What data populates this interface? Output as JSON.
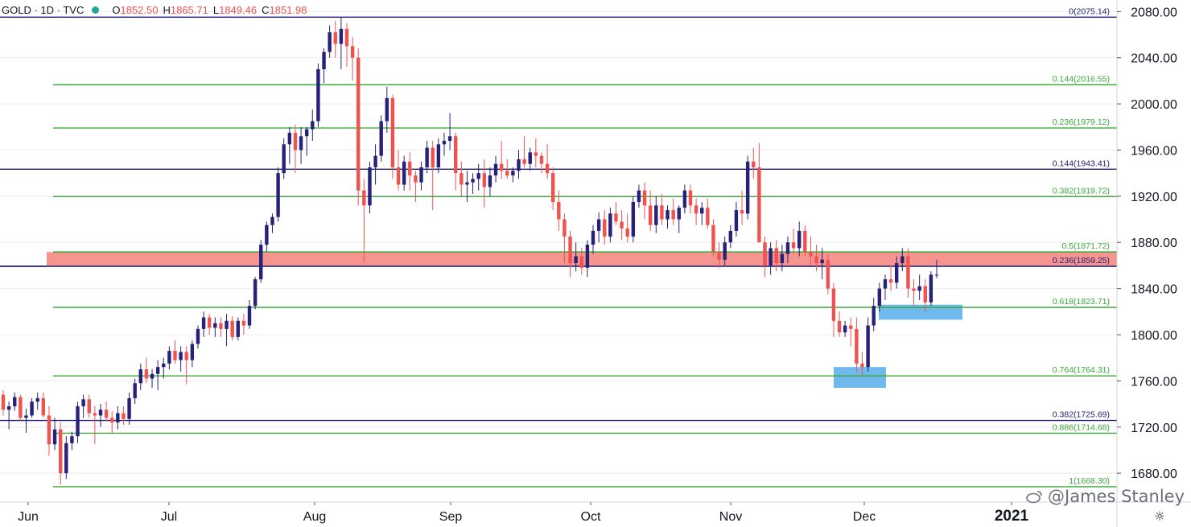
{
  "header": {
    "symbol": "GOLD · 1D · TVC",
    "open_label": "O",
    "open": "1852.50",
    "high_label": "H",
    "high": "1865.71",
    "low_label": "L",
    "low": "1849.46",
    "close_label": "C",
    "close": "1851.98"
  },
  "watermark": {
    "text": "@James Stanley",
    "icon": "weibo-logo-icon"
  },
  "settings": {
    "icon": "gear-icon"
  },
  "colors": {
    "up": "#26227a",
    "down": "#ef5350",
    "fib_green": "#3aa83a",
    "fib_navy": "#1f1a70",
    "red_zone": "#f4837d",
    "blue_zone": "#5fb1ea",
    "grid": "#ececec"
  },
  "chart_data": {
    "type": "candlestick",
    "y_axis": {
      "min": 1655,
      "max": 2090,
      "ticks": [
        "2080.00",
        "2040.00",
        "2000.00",
        "1960.00",
        "1920.00",
        "1880.00",
        "1840.00",
        "1800.00",
        "1760.00",
        "1720.00",
        "1680.00"
      ]
    },
    "x_axis": {
      "labels": [
        "Jun",
        "Jul",
        "Aug",
        "Sep",
        "Oct",
        "Nov",
        "Dec",
        "2021"
      ]
    },
    "fib_lines": [
      {
        "label": "0(2075.14)",
        "value": 2075.14,
        "color": "navy"
      },
      {
        "label": "0.144(2016.55)",
        "value": 2016.55,
        "color": "green"
      },
      {
        "label": "0.236(1979.12)",
        "value": 1979.12,
        "color": "green"
      },
      {
        "label": "0.144(1943.41)",
        "value": 1943.41,
        "color": "navy"
      },
      {
        "label": "0.382(1919.72)",
        "value": 1919.72,
        "color": "green"
      },
      {
        "label": "0.5(1871.72)",
        "value": 1871.72,
        "color": "green"
      },
      {
        "label": "0.236(1859.25)",
        "value": 1859.25,
        "color": "navy"
      },
      {
        "label": "0.618(1823.71)",
        "value": 1823.71,
        "color": "green"
      },
      {
        "label": "0.764(1764.31)",
        "value": 1764.31,
        "color": "green"
      },
      {
        "label": "0.382(1725.69)",
        "value": 1725.69,
        "color": "navy"
      },
      {
        "label": "0.886(1714.68)",
        "value": 1714.68,
        "color": "green"
      },
      {
        "label": "1(1668.30)",
        "value": 1668.3,
        "color": "green"
      }
    ],
    "zones": [
      {
        "name": "resistance-zone",
        "from": 1859.25,
        "to": 1871.72,
        "color": "red"
      },
      {
        "name": "support-zone-1",
        "from": 1813,
        "to": 1826,
        "color": "blue"
      },
      {
        "name": "support-zone-2",
        "from": 1754,
        "to": 1772,
        "color": "blue"
      }
    ],
    "candles": [
      [
        1748,
        1752,
        1730,
        1735
      ],
      [
        1735,
        1742,
        1718,
        1738
      ],
      [
        1738,
        1750,
        1734,
        1746
      ],
      [
        1746,
        1748,
        1725,
        1728
      ],
      [
        1728,
        1736,
        1715,
        1730
      ],
      [
        1730,
        1745,
        1728,
        1742
      ],
      [
        1742,
        1750,
        1735,
        1745
      ],
      [
        1745,
        1750,
        1728,
        1730
      ],
      [
        1730,
        1738,
        1695,
        1705
      ],
      [
        1705,
        1728,
        1700,
        1718
      ],
      [
        1718,
        1724,
        1670,
        1680
      ],
      [
        1680,
        1712,
        1675,
        1706
      ],
      [
        1706,
        1716,
        1700,
        1712
      ],
      [
        1712,
        1742,
        1706,
        1738
      ],
      [
        1738,
        1748,
        1728,
        1744
      ],
      [
        1744,
        1748,
        1728,
        1732
      ],
      [
        1732,
        1738,
        1705,
        1730
      ],
      [
        1730,
        1740,
        1720,
        1735
      ],
      [
        1735,
        1742,
        1725,
        1728
      ],
      [
        1728,
        1734,
        1715,
        1724
      ],
      [
        1724,
        1738,
        1718,
        1732
      ],
      [
        1732,
        1738,
        1722,
        1727
      ],
      [
        1727,
        1750,
        1722,
        1745
      ],
      [
        1745,
        1762,
        1740,
        1758
      ],
      [
        1758,
        1775,
        1752,
        1770
      ],
      [
        1770,
        1780,
        1758,
        1762
      ],
      [
        1762,
        1770,
        1754,
        1766
      ],
      [
        1766,
        1778,
        1752,
        1772
      ],
      [
        1772,
        1780,
        1762,
        1775
      ],
      [
        1775,
        1790,
        1770,
        1786
      ],
      [
        1786,
        1795,
        1775,
        1778
      ],
      [
        1778,
        1790,
        1768,
        1785
      ],
      [
        1785,
        1790,
        1757,
        1778
      ],
      [
        1778,
        1795,
        1772,
        1792
      ],
      [
        1792,
        1808,
        1788,
        1805
      ],
      [
        1805,
        1820,
        1798,
        1815
      ],
      [
        1815,
        1818,
        1800,
        1806
      ],
      [
        1806,
        1815,
        1798,
        1810
      ],
      [
        1810,
        1815,
        1798,
        1805
      ],
      [
        1805,
        1818,
        1790,
        1812
      ],
      [
        1812,
        1816,
        1795,
        1798
      ],
      [
        1798,
        1815,
        1795,
        1812
      ],
      [
        1812,
        1818,
        1800,
        1808
      ],
      [
        1808,
        1830,
        1805,
        1825
      ],
      [
        1825,
        1850,
        1822,
        1848
      ],
      [
        1848,
        1882,
        1845,
        1878
      ],
      [
        1878,
        1898,
        1872,
        1895
      ],
      [
        1895,
        1905,
        1888,
        1902
      ],
      [
        1902,
        1945,
        1898,
        1940
      ],
      [
        1940,
        1970,
        1935,
        1965
      ],
      [
        1965,
        1980,
        1948,
        1975
      ],
      [
        1975,
        1982,
        1940,
        1960
      ],
      [
        1960,
        1980,
        1948,
        1972
      ],
      [
        1972,
        1980,
        1955,
        1978
      ],
      [
        1978,
        1995,
        1968,
        1985
      ],
      [
        1985,
        2035,
        1980,
        2030
      ],
      [
        2030,
        2048,
        2018,
        2045
      ],
      [
        2045,
        2068,
        2040,
        2062
      ],
      [
        2062,
        2072,
        2040,
        2052
      ],
      [
        2052,
        2075,
        2030,
        2065
      ],
      [
        2065,
        2070,
        2032,
        2050
      ],
      [
        2050,
        2058,
        2020,
        2040
      ],
      [
        2040,
        2048,
        1912,
        1925
      ],
      [
        1925,
        1935,
        1862,
        1912
      ],
      [
        1912,
        1950,
        1905,
        1945
      ],
      [
        1945,
        1965,
        1930,
        1955
      ],
      [
        1955,
        1990,
        1950,
        1985
      ],
      [
        1985,
        2015,
        1975,
        2005
      ],
      [
        2005,
        2008,
        1935,
        1945
      ],
      [
        1945,
        1960,
        1925,
        1930
      ],
      [
        1930,
        1955,
        1925,
        1950
      ],
      [
        1950,
        1958,
        1925,
        1938
      ],
      [
        1938,
        1942,
        1915,
        1932
      ],
      [
        1932,
        1950,
        1925,
        1945
      ],
      [
        1945,
        1968,
        1940,
        1962
      ],
      [
        1962,
        1968,
        1908,
        1945
      ],
      [
        1945,
        1970,
        1940,
        1965
      ],
      [
        1965,
        1975,
        1955,
        1968
      ],
      [
        1968,
        1992,
        1960,
        1972
      ],
      [
        1972,
        1975,
        1925,
        1940
      ],
      [
        1940,
        1950,
        1920,
        1930
      ],
      [
        1930,
        1942,
        1915,
        1932
      ],
      [
        1932,
        1940,
        1922,
        1935
      ],
      [
        1935,
        1948,
        1925,
        1940
      ],
      [
        1940,
        1952,
        1910,
        1928
      ],
      [
        1928,
        1945,
        1920,
        1938
      ],
      [
        1938,
        1955,
        1932,
        1948
      ],
      [
        1948,
        1968,
        1935,
        1942
      ],
      [
        1942,
        1952,
        1935,
        1938
      ],
      [
        1938,
        1945,
        1932,
        1942
      ],
      [
        1942,
        1960,
        1935,
        1952
      ],
      [
        1952,
        1972,
        1945,
        1948
      ],
      [
        1948,
        1962,
        1942,
        1958
      ],
      [
        1958,
        1970,
        1945,
        1955
      ],
      [
        1955,
        1958,
        1940,
        1948
      ],
      [
        1948,
        1965,
        1935,
        1940
      ],
      [
        1940,
        1945,
        1908,
        1915
      ],
      [
        1915,
        1925,
        1890,
        1900
      ],
      [
        1900,
        1905,
        1862,
        1885
      ],
      [
        1885,
        1890,
        1850,
        1862
      ],
      [
        1862,
        1880,
        1855,
        1868
      ],
      [
        1868,
        1875,
        1852,
        1858
      ],
      [
        1858,
        1882,
        1850,
        1878
      ],
      [
        1878,
        1895,
        1870,
        1890
      ],
      [
        1890,
        1906,
        1880,
        1900
      ],
      [
        1900,
        1908,
        1878,
        1885
      ],
      [
        1885,
        1910,
        1880,
        1905
      ],
      [
        1905,
        1915,
        1895,
        1898
      ],
      [
        1898,
        1908,
        1882,
        1892
      ],
      [
        1892,
        1905,
        1880,
        1885
      ],
      [
        1885,
        1920,
        1880,
        1915
      ],
      [
        1915,
        1930,
        1910,
        1925
      ],
      [
        1925,
        1932,
        1900,
        1912
      ],
      [
        1912,
        1925,
        1890,
        1895
      ],
      [
        1895,
        1920,
        1888,
        1912
      ],
      [
        1912,
        1922,
        1895,
        1900
      ],
      [
        1900,
        1912,
        1892,
        1908
      ],
      [
        1908,
        1918,
        1895,
        1900
      ],
      [
        1900,
        1912,
        1888,
        1910
      ],
      [
        1910,
        1930,
        1905,
        1925
      ],
      [
        1925,
        1930,
        1905,
        1912
      ],
      [
        1912,
        1918,
        1895,
        1905
      ],
      [
        1905,
        1915,
        1895,
        1910
      ],
      [
        1910,
        1918,
        1892,
        1895
      ],
      [
        1895,
        1900,
        1868,
        1872
      ],
      [
        1872,
        1880,
        1858,
        1865
      ],
      [
        1865,
        1885,
        1860,
        1880
      ],
      [
        1880,
        1895,
        1875,
        1890
      ],
      [
        1890,
        1915,
        1885,
        1908
      ],
      [
        1908,
        1925,
        1895,
        1905
      ],
      [
        1905,
        1955,
        1900,
        1950
      ],
      [
        1950,
        1962,
        1935,
        1945
      ],
      [
        1945,
        1966,
        1880,
        1880
      ],
      [
        1880,
        1885,
        1850,
        1860
      ],
      [
        1860,
        1880,
        1852,
        1875
      ],
      [
        1875,
        1882,
        1855,
        1862
      ],
      [
        1862,
        1878,
        1855,
        1870
      ],
      [
        1870,
        1885,
        1862,
        1880
      ],
      [
        1880,
        1892,
        1870,
        1875
      ],
      [
        1875,
        1898,
        1868,
        1890
      ],
      [
        1890,
        1895,
        1868,
        1872
      ],
      [
        1872,
        1885,
        1860,
        1868
      ],
      [
        1868,
        1878,
        1855,
        1862
      ],
      [
        1862,
        1875,
        1848,
        1865
      ],
      [
        1865,
        1870,
        1835,
        1840
      ],
      [
        1840,
        1845,
        1798,
        1812
      ],
      [
        1812,
        1820,
        1798,
        1802
      ],
      [
        1802,
        1812,
        1798,
        1808
      ],
      [
        1808,
        1815,
        1790,
        1805
      ],
      [
        1805,
        1815,
        1768,
        1775
      ],
      [
        1775,
        1785,
        1765,
        1772
      ],
      [
        1772,
        1815,
        1768,
        1808
      ],
      [
        1808,
        1832,
        1803,
        1825
      ],
      [
        1825,
        1845,
        1820,
        1840
      ],
      [
        1840,
        1852,
        1830,
        1848
      ],
      [
        1848,
        1860,
        1838,
        1845
      ],
      [
        1845,
        1868,
        1840,
        1862
      ],
      [
        1862,
        1875,
        1855,
        1868
      ],
      [
        1868,
        1875,
        1832,
        1840
      ],
      [
        1840,
        1848,
        1825,
        1838
      ],
      [
        1838,
        1852,
        1830,
        1842
      ],
      [
        1842,
        1848,
        1820,
        1828
      ],
      [
        1828,
        1855,
        1825,
        1852
      ],
      [
        1852,
        1865,
        1849,
        1852
      ]
    ]
  }
}
